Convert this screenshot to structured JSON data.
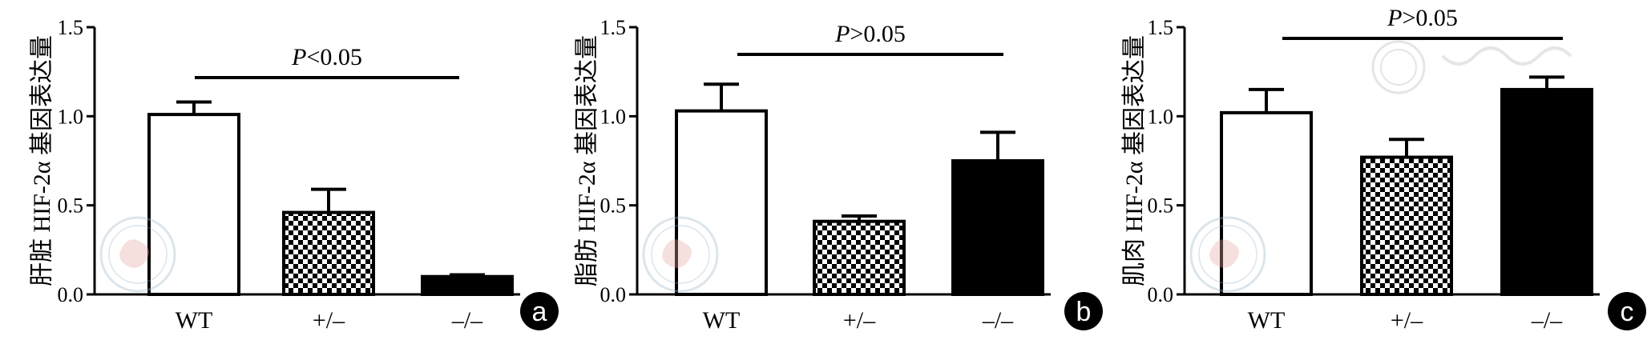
{
  "colors": {
    "axis": "#000000",
    "bar_fill_wt": "#ffffff",
    "bar_fill_het": "checkerboard",
    "bar_fill_ko": "#000000",
    "panel_badge": "#000000",
    "watermark": "#e8a9a0"
  },
  "chart_data": [
    {
      "type": "bar",
      "panel": "a",
      "ylabel": "肝脏 HIF-2α 基因表达量",
      "ylim": [
        0,
        1.5
      ],
      "yticks": [
        "0.0",
        "0.5",
        "1.0",
        "1.5"
      ],
      "categories": [
        "WT",
        "+/–",
        "–/–"
      ],
      "values": [
        1.01,
        0.46,
        0.1
      ],
      "errors": [
        0.07,
        0.13,
        0.01
      ],
      "significance": {
        "italic": "P",
        "text": "<0.05"
      },
      "grid": false
    },
    {
      "type": "bar",
      "panel": "b",
      "ylabel": "脂肪 HIF-2α 基因表达量",
      "ylim": [
        0,
        1.5
      ],
      "yticks": [
        "0.0",
        "0.5",
        "1.0",
        "1.5"
      ],
      "categories": [
        "WT",
        "+/–",
        "–/–"
      ],
      "values": [
        1.03,
        0.41,
        0.75
      ],
      "errors": [
        0.15,
        0.03,
        0.16
      ],
      "significance": {
        "italic": "P",
        "text": ">0.05"
      },
      "grid": false
    },
    {
      "type": "bar",
      "panel": "c",
      "ylabel": "肌肉 HIF-2α 基因表达量",
      "ylim": [
        0,
        1.5
      ],
      "yticks": [
        "0.0",
        "0.5",
        "1.0",
        "1.5"
      ],
      "categories": [
        "WT",
        "+/–",
        "–/–"
      ],
      "values": [
        1.02,
        0.77,
        1.15
      ],
      "errors": [
        0.13,
        0.1,
        0.07
      ],
      "significance": {
        "italic": "P",
        "text": ">0.05"
      },
      "grid": false
    }
  ]
}
